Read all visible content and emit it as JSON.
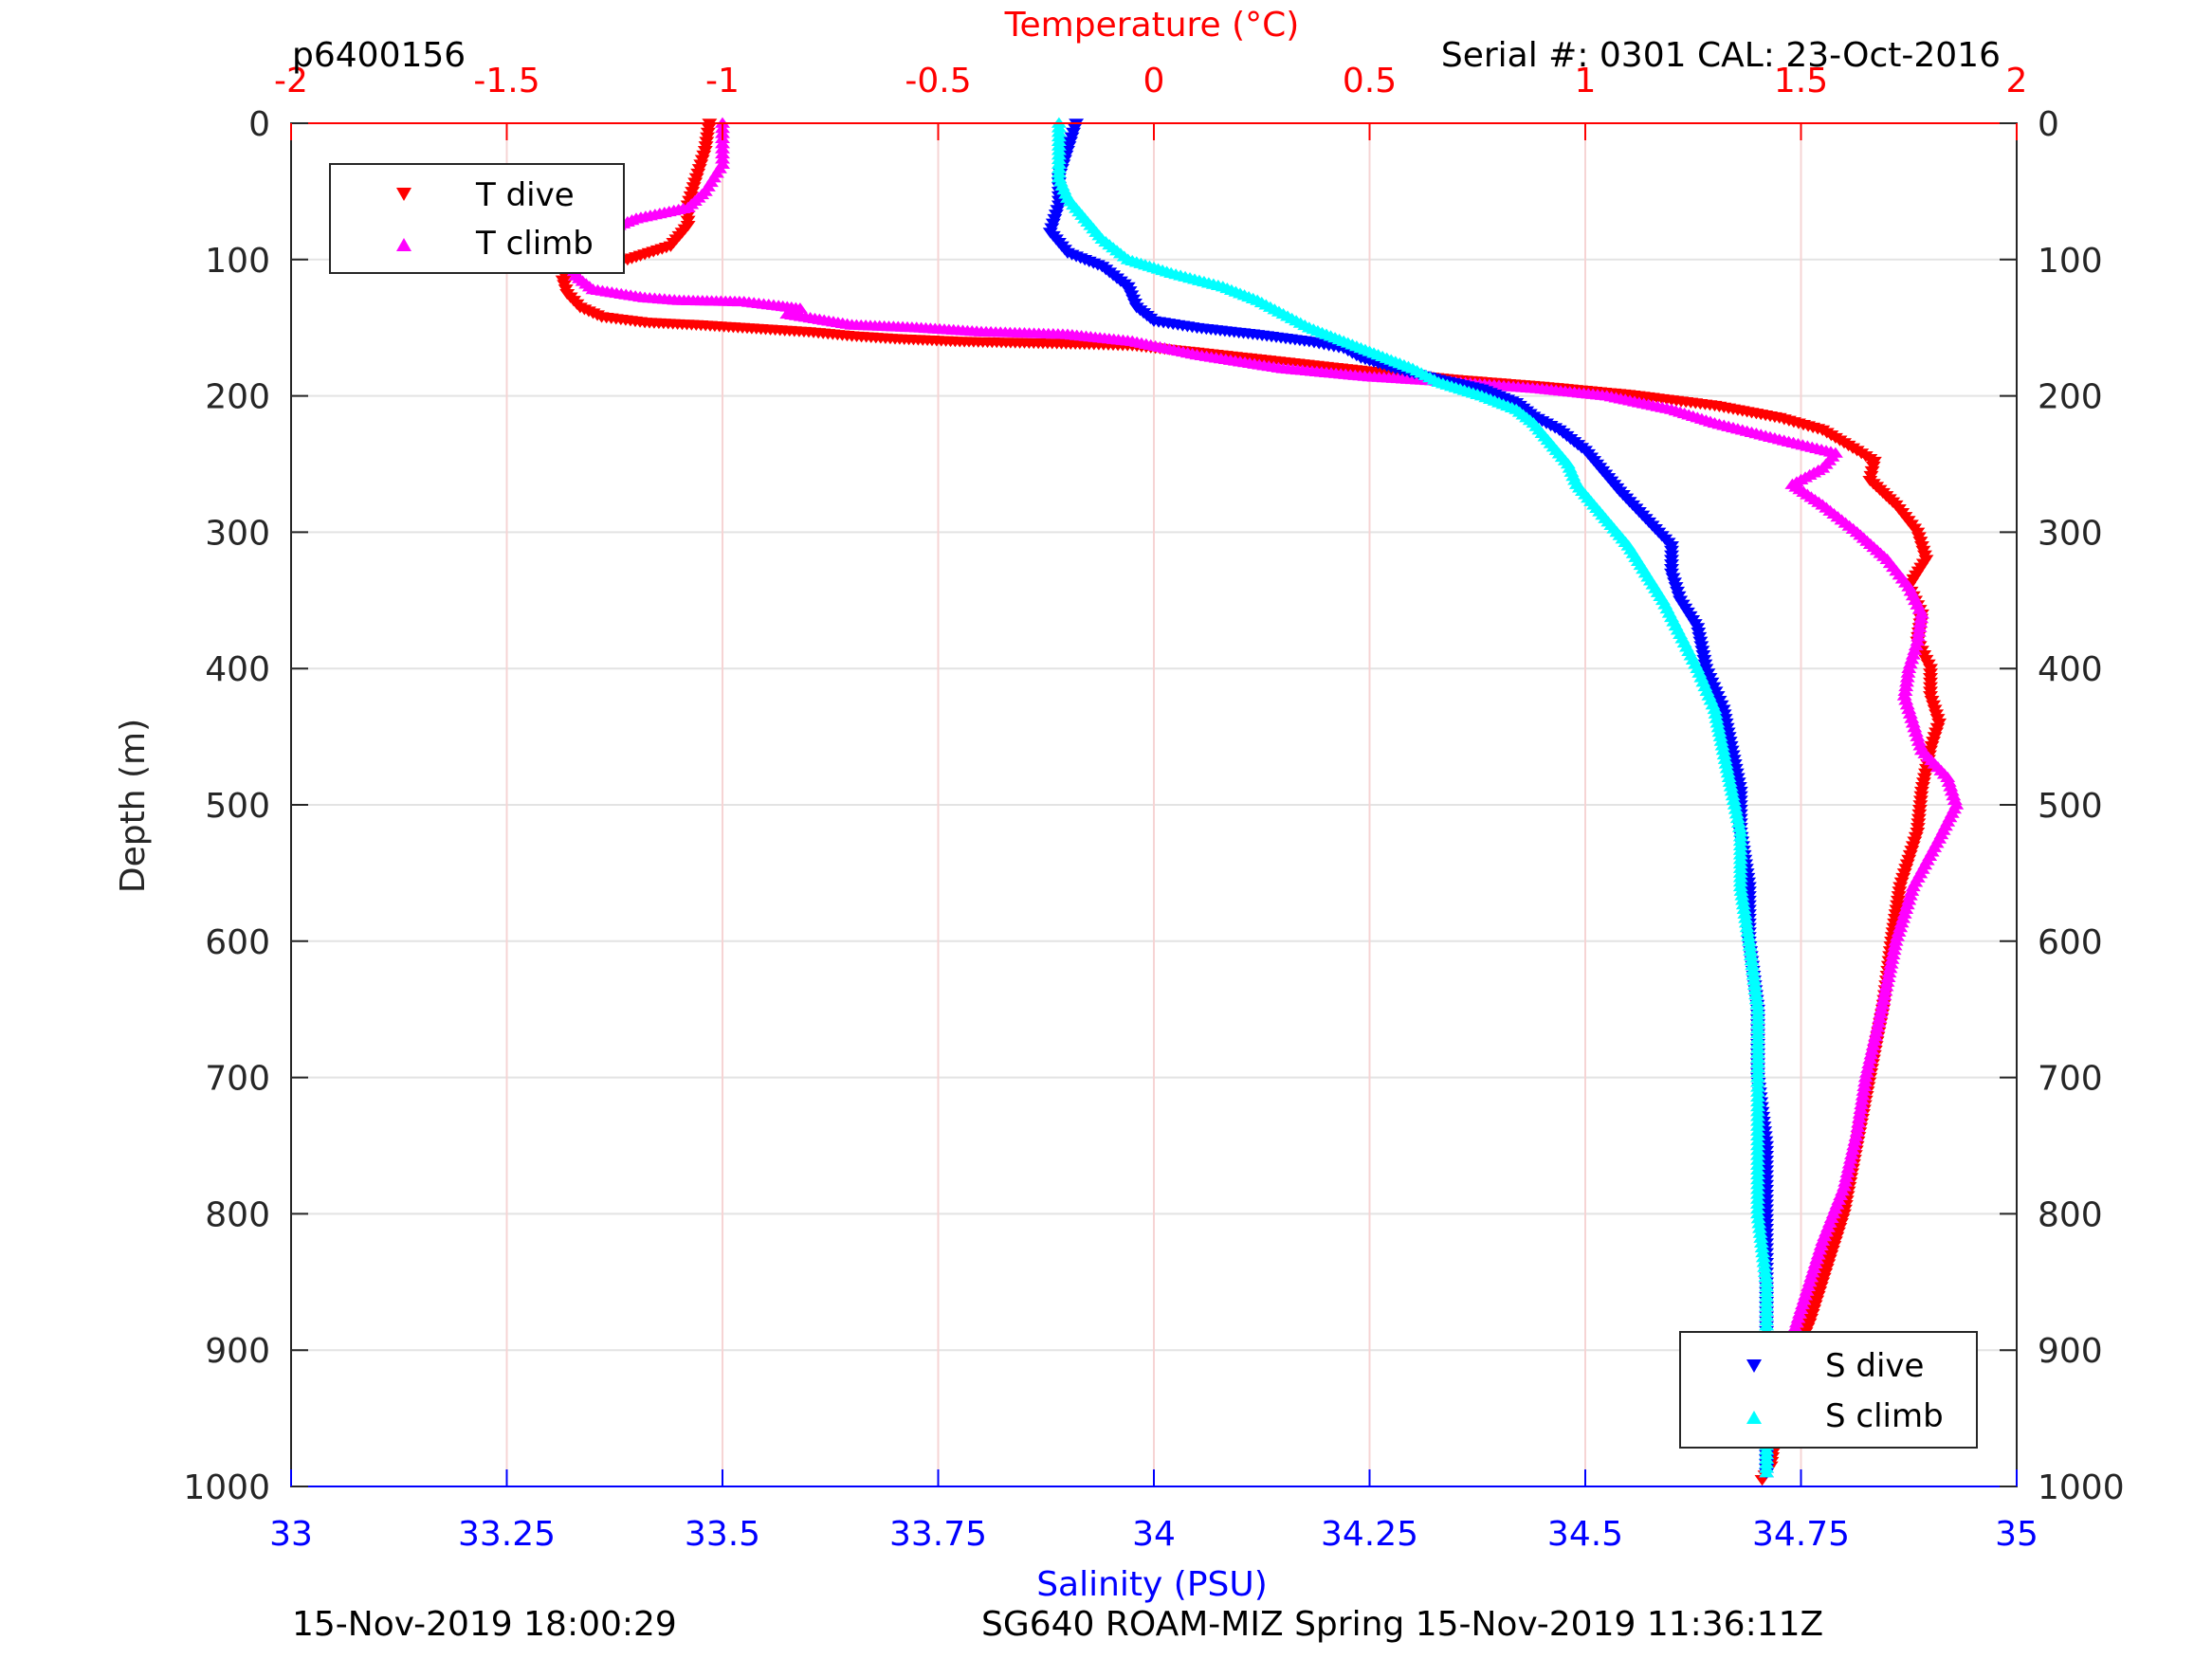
{
  "chart_data": {
    "type": "scatter",
    "header": {
      "profile_id": "p6400156",
      "serial": "Serial #: 0301  CAL: 23-Oct-2016"
    },
    "footer": {
      "left": "15-Nov-2019 18:00:29",
      "right": "SG640 ROAM-MIZ Spring 15-Nov-2019 11:36:11Z"
    },
    "axes": {
      "y": {
        "label": "Depth (m)",
        "range": [
          0,
          1000
        ],
        "reversed": true,
        "ticks": [
          0,
          100,
          200,
          300,
          400,
          500,
          600,
          700,
          800,
          900,
          1000
        ],
        "tick_labels": [
          "0",
          "100",
          "200",
          "300",
          "400",
          "500",
          "600",
          "700",
          "800",
          "900",
          "1000"
        ]
      },
      "x_top": {
        "label": "Temperature (°C)",
        "range": [
          -2,
          2
        ],
        "color": "#ff0000",
        "ticks": [
          -2,
          -1.5,
          -1,
          -0.5,
          0,
          0.5,
          1,
          1.5,
          2
        ],
        "tick_labels": [
          "-2",
          "-1.5",
          "-1",
          "-0.5",
          "0",
          "0.5",
          "1",
          "1.5",
          "2"
        ]
      },
      "x_bottom": {
        "label": "Salinity (PSU)",
        "range": [
          33,
          35
        ],
        "color": "#0000ff",
        "ticks": [
          33,
          33.25,
          33.5,
          33.75,
          34,
          34.25,
          34.5,
          34.75,
          35
        ],
        "tick_labels": [
          "33",
          "33.25",
          "33.5",
          "33.75",
          "34",
          "34.25",
          "34.5",
          "34.75",
          "35"
        ]
      },
      "grid": true
    },
    "legends": [
      {
        "position": "top-left",
        "entries": [
          {
            "name": "T dive",
            "marker": "triangle-down",
            "color": "#ff0000"
          },
          {
            "name": "T climb",
            "marker": "triangle-up",
            "color": "#ff00ff"
          }
        ]
      },
      {
        "position": "bottom-right",
        "entries": [
          {
            "name": "S dive",
            "marker": "triangle-down",
            "color": "#0000ff"
          },
          {
            "name": "S climb",
            "marker": "triangle-up",
            "color": "#00ffff"
          }
        ]
      }
    ],
    "series": [
      {
        "name": "T dive",
        "axis": "temperature",
        "marker": "triangle-down",
        "color": "#ff0000",
        "points": [
          [
            -1.03,
            0
          ],
          [
            -1.04,
            20
          ],
          [
            -1.06,
            40
          ],
          [
            -1.08,
            60
          ],
          [
            -1.08,
            75
          ],
          [
            -1.12,
            90
          ],
          [
            -1.22,
            100
          ],
          [
            -1.35,
            108
          ],
          [
            -1.37,
            115
          ],
          [
            -1.36,
            125
          ],
          [
            -1.33,
            135
          ],
          [
            -1.28,
            142
          ],
          [
            -1.18,
            146
          ],
          [
            -1.05,
            148
          ],
          [
            -0.9,
            151
          ],
          [
            -0.8,
            153
          ],
          [
            -0.7,
            156
          ],
          [
            -0.6,
            158
          ],
          [
            -0.45,
            160
          ],
          [
            -0.3,
            161
          ],
          [
            -0.15,
            162
          ],
          [
            -0.05,
            163
          ],
          [
            0.1,
            168
          ],
          [
            0.3,
            175
          ],
          [
            0.5,
            182
          ],
          [
            0.7,
            188
          ],
          [
            0.9,
            193
          ],
          [
            1.1,
            199
          ],
          [
            1.3,
            207
          ],
          [
            1.45,
            216
          ],
          [
            1.55,
            225
          ],
          [
            1.63,
            240
          ],
          [
            1.67,
            248
          ],
          [
            1.66,
            262
          ],
          [
            1.72,
            280
          ],
          [
            1.77,
            300
          ],
          [
            1.79,
            320
          ],
          [
            1.75,
            340
          ],
          [
            1.78,
            360
          ],
          [
            1.77,
            380
          ],
          [
            1.8,
            400
          ],
          [
            1.8,
            420
          ],
          [
            1.82,
            440
          ],
          [
            1.8,
            460
          ],
          [
            1.78,
            490
          ],
          [
            1.77,
            520
          ],
          [
            1.73,
            560
          ],
          [
            1.71,
            600
          ],
          [
            1.69,
            650
          ],
          [
            1.66,
            700
          ],
          [
            1.63,
            750
          ],
          [
            1.6,
            800
          ],
          [
            1.55,
            850
          ],
          [
            1.52,
            880
          ],
          [
            1.48,
            910
          ],
          [
            1.46,
            940
          ],
          [
            1.44,
            965
          ],
          [
            1.43,
            985
          ],
          [
            1.41,
            995
          ]
        ]
      },
      {
        "name": "T climb",
        "axis": "temperature",
        "marker": "triangle-up",
        "color": "#ff00ff",
        "points": [
          [
            -1.0,
            0
          ],
          [
            -1.0,
            15
          ],
          [
            -1.0,
            30
          ],
          [
            -1.02,
            40
          ],
          [
            -1.04,
            50
          ],
          [
            -1.08,
            62
          ],
          [
            -1.2,
            70
          ],
          [
            -1.28,
            80
          ],
          [
            -1.33,
            92
          ],
          [
            -1.35,
            102
          ],
          [
            -1.34,
            112
          ],
          [
            -1.3,
            122
          ],
          [
            -1.18,
            128
          ],
          [
            -1.1,
            130
          ],
          [
            -0.95,
            131
          ],
          [
            -0.87,
            134
          ],
          [
            -0.82,
            136
          ],
          [
            -0.85,
            140
          ],
          [
            -0.7,
            148
          ],
          [
            -0.55,
            150
          ],
          [
            -0.4,
            153
          ],
          [
            -0.2,
            155
          ],
          [
            -0.05,
            160
          ],
          [
            0.1,
            170
          ],
          [
            0.3,
            180
          ],
          [
            0.5,
            186
          ],
          [
            0.7,
            190
          ],
          [
            0.9,
            195
          ],
          [
            1.05,
            200
          ],
          [
            1.2,
            210
          ],
          [
            1.3,
            220
          ],
          [
            1.45,
            232
          ],
          [
            1.58,
            242
          ],
          [
            1.55,
            253
          ],
          [
            1.48,
            265
          ],
          [
            1.55,
            280
          ],
          [
            1.63,
            300
          ],
          [
            1.7,
            320
          ],
          [
            1.75,
            340
          ],
          [
            1.78,
            360
          ],
          [
            1.77,
            380
          ],
          [
            1.75,
            400
          ],
          [
            1.74,
            420
          ],
          [
            1.76,
            440
          ],
          [
            1.78,
            460
          ],
          [
            1.84,
            480
          ],
          [
            1.86,
            500
          ],
          [
            1.82,
            525
          ],
          [
            1.76,
            560
          ],
          [
            1.72,
            600
          ],
          [
            1.7,
            630
          ],
          [
            1.68,
            660
          ],
          [
            1.65,
            700
          ],
          [
            1.63,
            740
          ],
          [
            1.6,
            780
          ],
          [
            1.55,
            820
          ],
          [
            1.52,
            850
          ],
          [
            1.49,
            880
          ],
          [
            1.46,
            910
          ],
          [
            1.44,
            940
          ],
          [
            1.42,
            970
          ],
          [
            1.42,
            990
          ]
        ]
      }
    ],
    "salinity_series": [
      {
        "name": "S dive",
        "axis": "salinity",
        "marker": "triangle-down",
        "color": "#0000ff",
        "points": [
          [
            33.91,
            0
          ],
          [
            33.9,
            20
          ],
          [
            33.89,
            40
          ],
          [
            33.89,
            60
          ],
          [
            33.88,
            80
          ],
          [
            33.9,
            95
          ],
          [
            33.94,
            105
          ],
          [
            33.97,
            120
          ],
          [
            33.98,
            135
          ],
          [
            34.0,
            145
          ],
          [
            34.05,
            150
          ],
          [
            34.12,
            155
          ],
          [
            34.18,
            160
          ],
          [
            34.22,
            165
          ],
          [
            34.24,
            172
          ],
          [
            34.28,
            180
          ],
          [
            34.33,
            188
          ],
          [
            34.38,
            195
          ],
          [
            34.42,
            205
          ],
          [
            34.44,
            215
          ],
          [
            34.47,
            225
          ],
          [
            34.5,
            240
          ],
          [
            34.52,
            255
          ],
          [
            34.54,
            270
          ],
          [
            34.57,
            290
          ],
          [
            34.6,
            310
          ],
          [
            34.6,
            330
          ],
          [
            34.61,
            350
          ],
          [
            34.63,
            370
          ],
          [
            34.64,
            400
          ],
          [
            34.66,
            430
          ],
          [
            34.67,
            460
          ],
          [
            34.68,
            490
          ],
          [
            34.68,
            520
          ],
          [
            34.69,
            560
          ],
          [
            34.69,
            600
          ],
          [
            34.7,
            650
          ],
          [
            34.7,
            700
          ],
          [
            34.71,
            750
          ],
          [
            34.71,
            800
          ],
          [
            34.71,
            850
          ],
          [
            34.71,
            900
          ],
          [
            34.71,
            950
          ],
          [
            34.71,
            990
          ]
        ]
      },
      {
        "name": "S climb",
        "axis": "salinity",
        "marker": "triangle-up",
        "color": "#00ffff",
        "points": [
          [
            33.89,
            0
          ],
          [
            33.89,
            20
          ],
          [
            33.89,
            40
          ],
          [
            33.9,
            55
          ],
          [
            33.92,
            70
          ],
          [
            33.94,
            85
          ],
          [
            33.97,
            100
          ],
          [
            34.02,
            110
          ],
          [
            34.08,
            120
          ],
          [
            34.12,
            130
          ],
          [
            34.15,
            140
          ],
          [
            34.18,
            150
          ],
          [
            34.22,
            160
          ],
          [
            34.26,
            170
          ],
          [
            34.3,
            180
          ],
          [
            34.33,
            190
          ],
          [
            34.38,
            200
          ],
          [
            34.42,
            210
          ],
          [
            34.44,
            220
          ],
          [
            34.46,
            235
          ],
          [
            34.48,
            250
          ],
          [
            34.49,
            265
          ],
          [
            34.51,
            280
          ],
          [
            34.53,
            295
          ],
          [
            34.55,
            310
          ],
          [
            34.57,
            330
          ],
          [
            34.59,
            350
          ],
          [
            34.61,
            375
          ],
          [
            34.63,
            400
          ],
          [
            34.65,
            430
          ],
          [
            34.66,
            460
          ],
          [
            34.67,
            490
          ],
          [
            34.68,
            520
          ],
          [
            34.68,
            560
          ],
          [
            34.69,
            600
          ],
          [
            34.7,
            650
          ],
          [
            34.7,
            700
          ],
          [
            34.7,
            750
          ],
          [
            34.7,
            800
          ],
          [
            34.71,
            850
          ],
          [
            34.71,
            900
          ],
          [
            34.71,
            950
          ],
          [
            34.71,
            990
          ]
        ]
      }
    ]
  }
}
